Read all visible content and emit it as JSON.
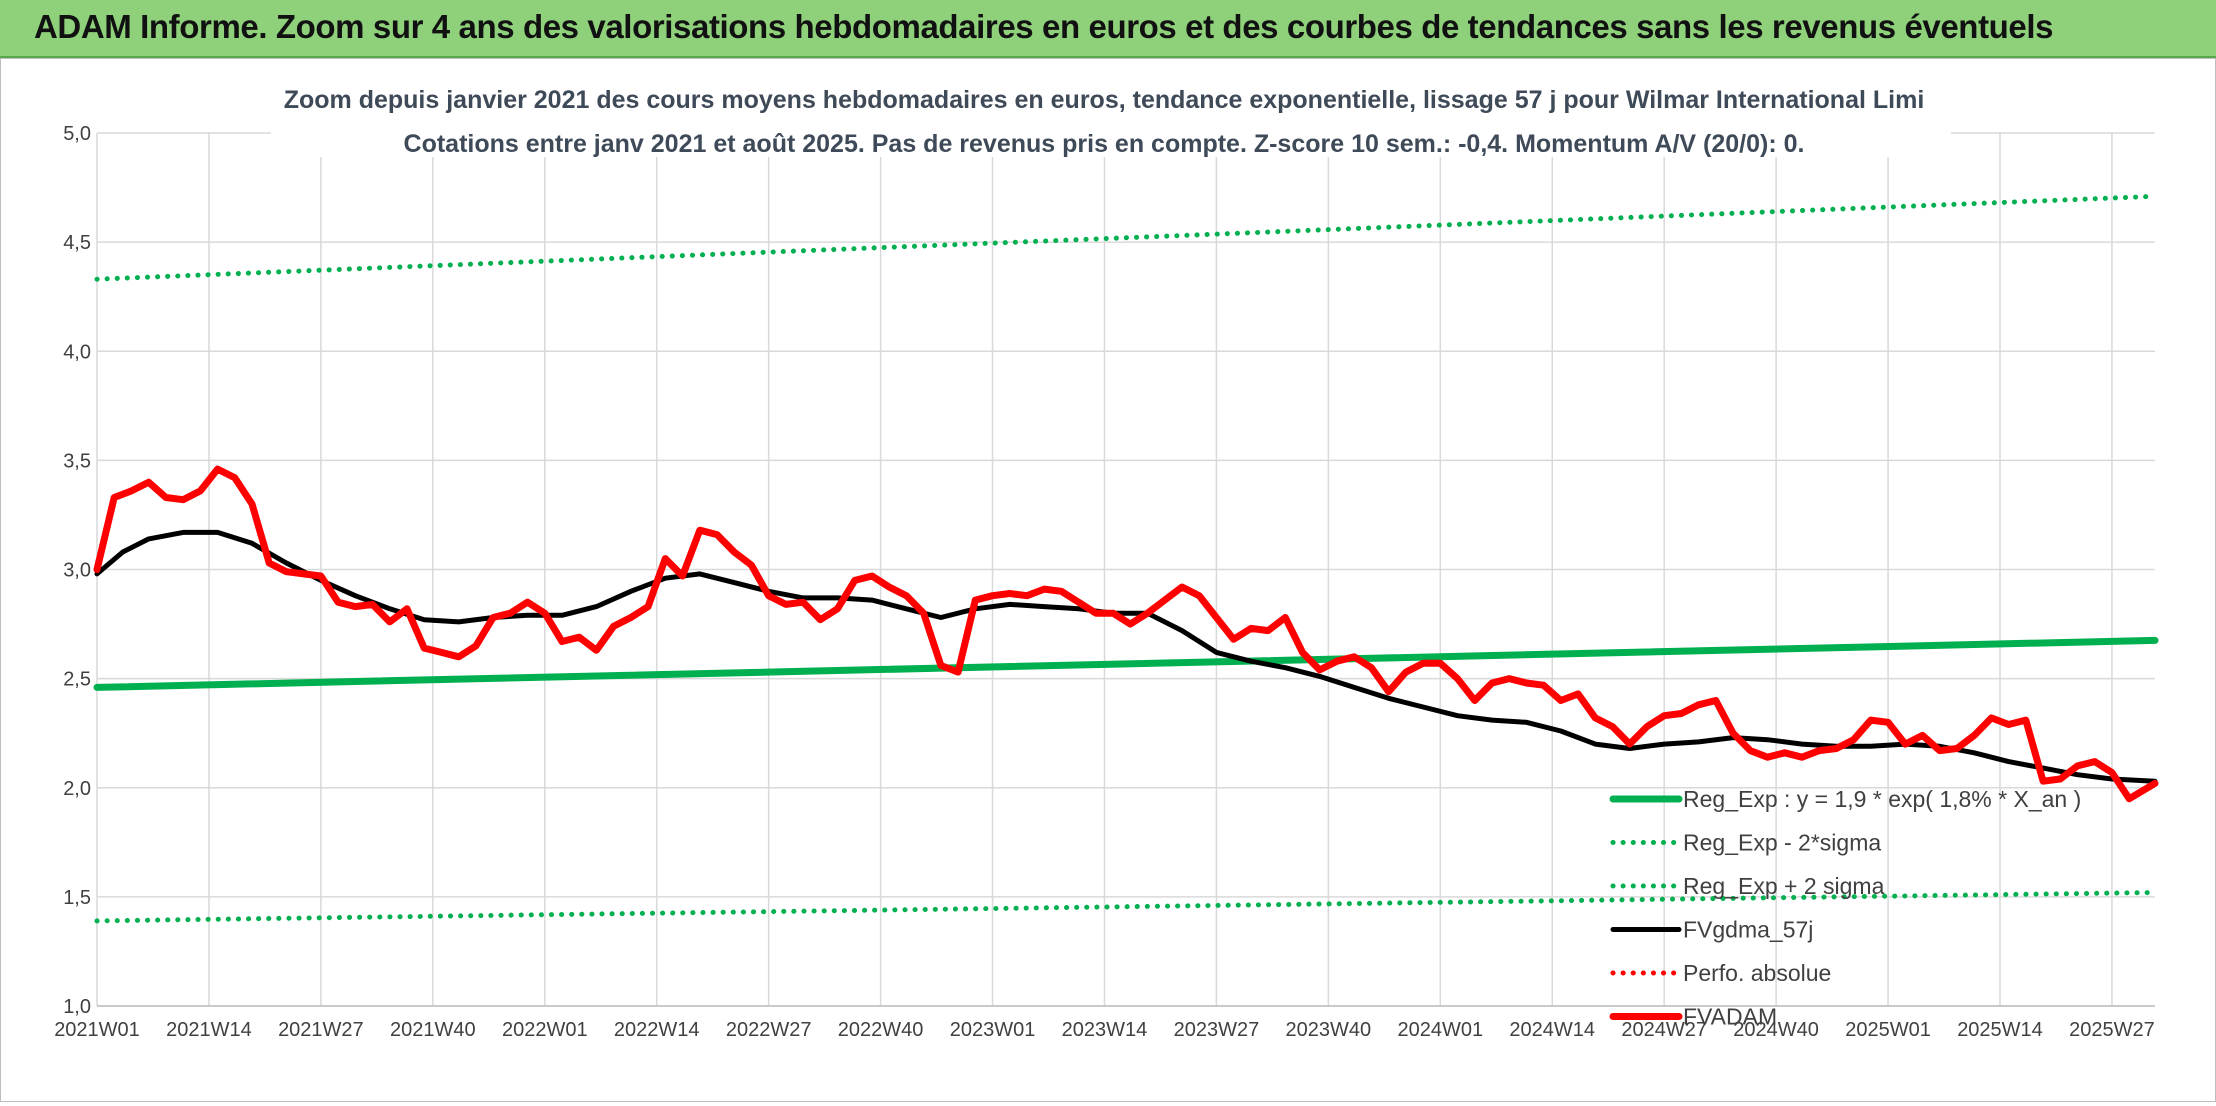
{
  "banner": {
    "title": "ADAM Informe. Zoom sur 4 ans des valorisations hebdomadaires en euros et des courbes de tendances sans les revenus éventuels"
  },
  "colors": {
    "banner_bg": "#8fd17a",
    "trend_green": "#00b050",
    "price_red": "#ff0000",
    "smooth_black": "#000000",
    "grid": "#d9d9d9"
  },
  "chart_data": {
    "type": "line",
    "title": "Zoom depuis janvier 2021 des cours moyens hebdomadaires en euros, tendance exponentielle, lissage 57 j pour Wilmar International Limi",
    "subtitle": "Cotations entre janv 2021 et août 2025. Pas de revenus pris en compte. Z-score 10 sem.: -0,4. Momentum A/V (20/0): 0.",
    "xlabel": "",
    "ylabel": "",
    "ylim": [
      1.0,
      5.0
    ],
    "yticks": [
      "1,0",
      "1,5",
      "2,0",
      "2,5",
      "3,0",
      "3,5",
      "4,0",
      "4,5",
      "5,0"
    ],
    "xticks": [
      "2021W01",
      "2021W14",
      "2021W27",
      "2021W40",
      "2022W01",
      "2022W14",
      "2022W27",
      "2022W40",
      "2023W01",
      "2023W14",
      "2023W27",
      "2023W40",
      "2024W01",
      "2024W14",
      "2024W27",
      "2024W40",
      "2025W01",
      "2025W14",
      "2025W27"
    ],
    "grid": true,
    "legend_position": "lower-right",
    "series": [
      {
        "name": "Reg_Exp : y = 1,9 * exp( 1,8% *  X_an )",
        "style": "solid",
        "color": "#00b050",
        "x": [
          0,
          239
        ],
        "y": [
          2.46,
          2.675
        ]
      },
      {
        "name": "Reg_Exp - 2*sigma",
        "style": "dotted",
        "color": "#00b050",
        "x": [
          0,
          239
        ],
        "y": [
          1.39,
          1.52
        ]
      },
      {
        "name": "Reg_Exp + 2 sigma",
        "style": "dotted",
        "color": "#00b050",
        "x": [
          0,
          239
        ],
        "y": [
          4.33,
          4.71
        ]
      },
      {
        "name": "FVgdma_57j",
        "style": "solid",
        "color": "#000000",
        "x": [
          0,
          3,
          6,
          10,
          14,
          18,
          22,
          26,
          30,
          34,
          38,
          42,
          46,
          50,
          54,
          58,
          62,
          66,
          70,
          74,
          78,
          82,
          86,
          90,
          94,
          98,
          102,
          106,
          110,
          114,
          118,
          122,
          126,
          130,
          134,
          138,
          142,
          146,
          150,
          154,
          158,
          162,
          166,
          170,
          174,
          178,
          182,
          186,
          190,
          194,
          198,
          202,
          206,
          210,
          214,
          218,
          222,
          226,
          230,
          234,
          239
        ],
        "y": [
          2.98,
          3.08,
          3.14,
          3.17,
          3.17,
          3.12,
          3.03,
          2.95,
          2.88,
          2.82,
          2.77,
          2.76,
          2.78,
          2.79,
          2.79,
          2.83,
          2.9,
          2.96,
          2.98,
          2.94,
          2.9,
          2.87,
          2.87,
          2.86,
          2.82,
          2.78,
          2.82,
          2.84,
          2.83,
          2.82,
          2.8,
          2.8,
          2.72,
          2.62,
          2.58,
          2.55,
          2.51,
          2.46,
          2.41,
          2.37,
          2.33,
          2.31,
          2.3,
          2.26,
          2.2,
          2.18,
          2.2,
          2.21,
          2.23,
          2.22,
          2.2,
          2.19,
          2.19,
          2.2,
          2.19,
          2.16,
          2.12,
          2.09,
          2.06,
          2.04,
          2.03
        ]
      },
      {
        "name": "Perfo. absolue",
        "style": "dotted",
        "color": "#ff0000",
        "x": [],
        "y": []
      },
      {
        "name": "FVADAM",
        "style": "solid-thick",
        "color": "#ff0000",
        "x": [
          0,
          2,
          4,
          6,
          8,
          10,
          12,
          14,
          16,
          18,
          20,
          22,
          24,
          26,
          28,
          30,
          32,
          34,
          36,
          38,
          40,
          42,
          44,
          46,
          48,
          50,
          52,
          54,
          56,
          58,
          60,
          62,
          64,
          66,
          68,
          70,
          72,
          74,
          76,
          78,
          80,
          82,
          84,
          86,
          88,
          90,
          92,
          94,
          96,
          98,
          100,
          102,
          104,
          106,
          108,
          110,
          112,
          114,
          116,
          118,
          120,
          122,
          124,
          126,
          128,
          130,
          132,
          134,
          136,
          138,
          140,
          142,
          144,
          146,
          148,
          150,
          152,
          154,
          156,
          158,
          160,
          162,
          164,
          166,
          168,
          170,
          172,
          174,
          176,
          178,
          180,
          182,
          184,
          186,
          188,
          190,
          192,
          194,
          196,
          198,
          200,
          202,
          204,
          206,
          208,
          210,
          212,
          214,
          216,
          218,
          220,
          222,
          224,
          226,
          228,
          230,
          232,
          234,
          236,
          239
        ],
        "y": [
          3.0,
          3.33,
          3.36,
          3.4,
          3.33,
          3.32,
          3.36,
          3.46,
          3.42,
          3.3,
          3.03,
          2.99,
          2.98,
          2.97,
          2.85,
          2.83,
          2.84,
          2.76,
          2.82,
          2.64,
          2.62,
          2.6,
          2.65,
          2.78,
          2.8,
          2.85,
          2.8,
          2.67,
          2.69,
          2.63,
          2.74,
          2.78,
          2.83,
          3.05,
          2.97,
          3.18,
          3.16,
          3.08,
          3.02,
          2.88,
          2.84,
          2.85,
          2.77,
          2.82,
          2.95,
          2.97,
          2.92,
          2.88,
          2.8,
          2.56,
          2.53,
          2.86,
          2.88,
          2.89,
          2.88,
          2.91,
          2.9,
          2.85,
          2.8,
          2.8,
          2.75,
          2.8,
          2.86,
          2.92,
          2.88,
          2.78,
          2.68,
          2.73,
          2.72,
          2.78,
          2.62,
          2.54,
          2.58,
          2.6,
          2.55,
          2.44,
          2.53,
          2.57,
          2.57,
          2.5,
          2.4,
          2.48,
          2.5,
          2.48,
          2.47,
          2.4,
          2.43,
          2.32,
          2.28,
          2.2,
          2.28,
          2.33,
          2.34,
          2.38,
          2.4,
          2.25,
          2.17,
          2.14,
          2.16,
          2.14,
          2.17,
          2.18,
          2.22,
          2.31,
          2.3,
          2.2,
          2.24,
          2.17,
          2.18,
          2.24,
          2.32,
          2.29,
          2.31,
          2.03,
          2.04,
          2.1,
          2.12,
          2.07,
          1.95,
          2.02
        ]
      }
    ]
  }
}
